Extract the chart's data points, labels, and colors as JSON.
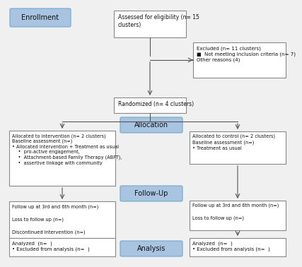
{
  "background_color": "#f0f0f0",
  "label_box_color": "#a8c4e0",
  "content_box_color": "#ffffff",
  "border_color": "#888888",
  "arrow_color": "#555555",
  "enrollment_label": "Enrollment",
  "eligibility_text": "Assessed for eligibility (n= 15\nclusters)",
  "excluded_text": "Excluded (n= 11 clusters)\n■  Not meeting inclusion criteria (n= 7)\nOther reasons (4)",
  "randomized_text": "Randomized (n= 4 clusters)",
  "allocation_label": "Allocation",
  "left_alloc_text": "Allocated to intervention (n= 2 clusters)\nBaseline assessment (n=)\n• Allocated intervention + Treatment as usual\n    •  pro-active engagement,\n    •  Attachment-based Family Therapy (ABFT),\n    •  assertive linkage with community",
  "right_alloc_text": "Allocated to control (n= 2 clusters)\nBaseline assessment (n=)\n• Treatment as usual",
  "followup_label": "Follow-Up",
  "left_fu_text": "Follow up at 3rd and 6th month (n=)\n\nLoss to follow up (n=)\n\nDiscontinued intervention (n=)",
  "right_fu_text": "Follow up at 3rd and 6th month (n=)\n\nLoss to follow up (n=)",
  "analysis_label": "Analysis",
  "left_an_text": "Analyzed  (n=  )\n• Excluded from analysis (n=  )",
  "right_an_text": "Analyzed  (n=  )\n• Excluded from analysis (n=  )"
}
